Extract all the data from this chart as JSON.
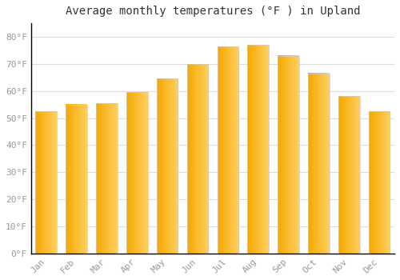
{
  "title": "Average monthly temperatures (°F ) in Upland",
  "months": [
    "Jan",
    "Feb",
    "Mar",
    "Apr",
    "May",
    "Jun",
    "Jul",
    "Aug",
    "Sep",
    "Oct",
    "Nov",
    "Dec"
  ],
  "values": [
    52.5,
    55.0,
    55.5,
    59.5,
    64.5,
    70.0,
    76.5,
    77.0,
    73.0,
    66.5,
    58.0,
    52.5
  ],
  "bar_color_left": "#F5A800",
  "bar_color_right": "#FFD060",
  "background_color": "#FFFFFF",
  "grid_color": "#DDDDDD",
  "yticks": [
    0,
    10,
    20,
    30,
    40,
    50,
    60,
    70,
    80
  ],
  "ytick_labels": [
    "0°F",
    "10°F",
    "20°F",
    "30°F",
    "40°F",
    "50°F",
    "60°F",
    "70°F",
    "80°F"
  ],
  "ylim": [
    0,
    85
  ],
  "title_fontsize": 10,
  "tick_fontsize": 8,
  "tick_color": "#999999",
  "axis_color": "#000000"
}
